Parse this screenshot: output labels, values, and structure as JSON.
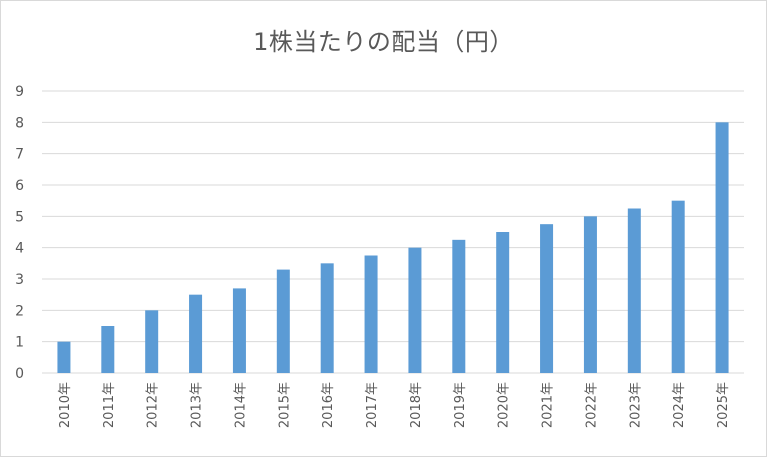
{
  "chart_data": {
    "type": "bar",
    "title": "1株当たりの配当（円）",
    "categories": [
      "2010年",
      "2011年",
      "2012年",
      "2013年",
      "2014年",
      "2015年",
      "2016年",
      "2017年",
      "2018年",
      "2019年",
      "2020年",
      "2021年",
      "2022年",
      "2023年",
      "2024年",
      "2025年"
    ],
    "series": [
      {
        "values": [
          1,
          1.5,
          2,
          2.5,
          2.7,
          3.3,
          3.5,
          3.75,
          4,
          4.25,
          4.5,
          4.75,
          5,
          5.25,
          5.5,
          8
        ]
      }
    ],
    "ylim": [
      0,
      9
    ],
    "yticks": [
      0,
      1,
      2,
      3,
      4,
      5,
      6,
      7,
      8,
      9
    ],
    "grid": true,
    "legend": "none",
    "bar_color": "#5b9bd5",
    "grid_color": "#d9d9d9"
  }
}
